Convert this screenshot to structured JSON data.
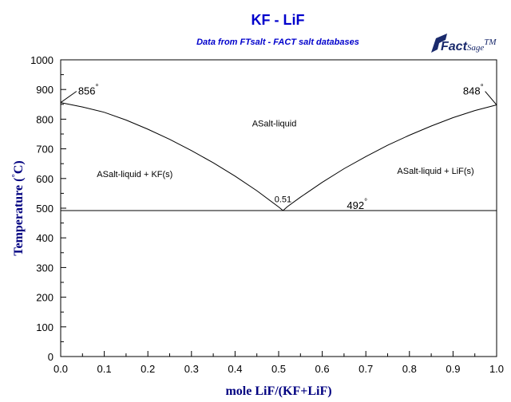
{
  "chart_data": {
    "type": "line",
    "title": "KF - LiF",
    "subtitle": "Data from FTsalt - FACT salt databases",
    "xlabel": "mole LiF/(KF+LiF)",
    "ylabel": "Temperature (°C)",
    "ylabel_main": "Temperature",
    "ylabel_open": "(",
    "ylabel_degree": "°",
    "ylabel_unit": "C)",
    "xlim": [
      0,
      1
    ],
    "ylim": [
      0,
      1000
    ],
    "x_ticks": [
      "0.0",
      "0.1",
      "0.2",
      "0.3",
      "0.4",
      "0.5",
      "0.6",
      "0.7",
      "0.8",
      "0.9",
      "1.0"
    ],
    "y_ticks": [
      "0",
      "100",
      "200",
      "300",
      "400",
      "500",
      "600",
      "700",
      "800",
      "900",
      "1000"
    ],
    "grid": false,
    "series": [
      {
        "points": [
          [
            0,
            856
          ],
          [
            0.05,
            841
          ],
          [
            0.1,
            823
          ],
          [
            0.15,
            797
          ],
          [
            0.2,
            766
          ],
          [
            0.25,
            732
          ],
          [
            0.3,
            694
          ],
          [
            0.35,
            653
          ],
          [
            0.4,
            608
          ],
          [
            0.45,
            559
          ],
          [
            0.5,
            504
          ],
          [
            0.51,
            492
          ]
        ]
      },
      {
        "points": [
          [
            0.51,
            492
          ],
          [
            0.52,
            505
          ],
          [
            0.55,
            537
          ],
          [
            0.6,
            587
          ],
          [
            0.65,
            633
          ],
          [
            0.7,
            674
          ],
          [
            0.75,
            712
          ],
          [
            0.8,
            746
          ],
          [
            0.85,
            777
          ],
          [
            0.9,
            805
          ],
          [
            0.95,
            829
          ],
          [
            1.0,
            848
          ]
        ]
      },
      {
        "points": [
          [
            0,
            492
          ],
          [
            1,
            492
          ]
        ]
      }
    ],
    "regions": [
      {
        "label": "ASalt-liquid",
        "x": 0.49,
        "y": 775
      },
      {
        "label": "ASalt-liquid + KF(s)",
        "x": 0.17,
        "y": 605
      },
      {
        "label": "ASalt-liquid + LiF(s)",
        "x": 0.86,
        "y": 615
      }
    ],
    "annotations": [
      {
        "label": "856",
        "degree": "°",
        "x": 0.0,
        "y": 856,
        "tx": 0.04,
        "ty": 883,
        "anchor": "start"
      },
      {
        "label": "848",
        "degree": "°",
        "x": 1.0,
        "y": 848,
        "tx": 0.97,
        "ty": 883,
        "anchor": "end"
      },
      {
        "label": "492",
        "degree": "°",
        "x": 0.68,
        "y": 492,
        "tx": 0.68,
        "ty": 497,
        "anchor": "middle"
      },
      {
        "label": "0.51",
        "x": 0.51,
        "y": 492,
        "tx": 0.51,
        "ty": 520,
        "anchor": "middle"
      }
    ]
  },
  "logo": {
    "text": "FactSage",
    "mark": "TM",
    "fact": "Fact",
    "sage": "Sage",
    "color": "#1a2a6c"
  },
  "colors": {
    "title": "#0000cc",
    "axis_label": "#000080",
    "line": "#000000"
  }
}
